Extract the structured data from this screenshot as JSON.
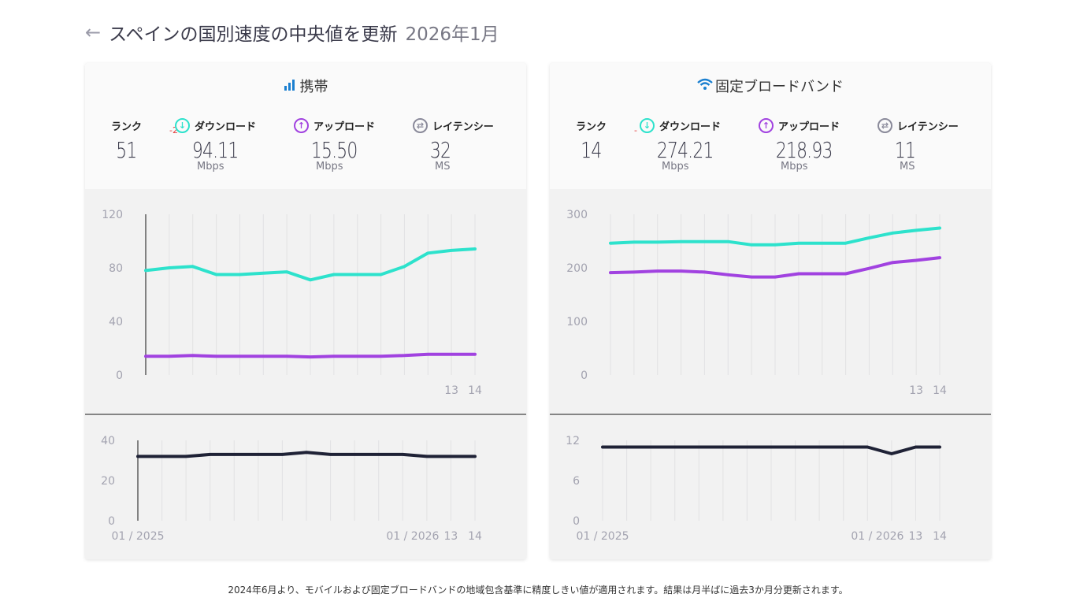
{
  "header": {
    "back_icon": "arrow-left-icon",
    "title": "スペインの国別速度の中央値を更新",
    "date": "2026年1月"
  },
  "colors": {
    "download": "#2de2cc",
    "upload": "#a142e0",
    "latency": "#1f2236",
    "latency_icon": "#8a8a9a",
    "brand": "#1a7fd0"
  },
  "cards": [
    {
      "title": "携帯",
      "icon": "signal-bars-icon",
      "rank_label": "ランク",
      "rank": "51",
      "rank_change": "-2",
      "download_label": "ダウンロード",
      "download": "94.11",
      "download_unit": "Mbps",
      "upload_label": "アップロード",
      "upload": "15.50",
      "upload_unit": "Mbps",
      "latency_label": "レイテンシー",
      "latency": "32",
      "latency_unit": "MS"
    },
    {
      "title": "固定ブロードバンド",
      "icon": "wifi-icon",
      "rank_label": "ランク",
      "rank": "14",
      "rank_change": "-",
      "download_label": "ダウンロード",
      "download": "274.21",
      "download_unit": "Mbps",
      "upload_label": "アップロード",
      "upload": "218.93",
      "upload_unit": "Mbps",
      "latency_label": "レイテンシー",
      "latency": "11",
      "latency_unit": "MS"
    }
  ],
  "chart_data": [
    {
      "type": "line",
      "name": "mobile-speed",
      "ylim": [
        0,
        120
      ],
      "yticks": [
        0,
        40,
        80,
        120
      ],
      "x_tick_labels": [
        {
          "index": 13,
          "label": "13"
        },
        {
          "index": 14,
          "label": "14"
        }
      ],
      "grid": "vertical",
      "series": [
        {
          "key": "download",
          "values": [
            78,
            80,
            81,
            75,
            75,
            76,
            77,
            71,
            75,
            75,
            75,
            81,
            91,
            93,
            94.11
          ]
        },
        {
          "key": "upload",
          "values": [
            14,
            14,
            14.5,
            14,
            14,
            14,
            14,
            13.5,
            14,
            14,
            14,
            14.5,
            15.5,
            15.5,
            15.5
          ]
        }
      ]
    },
    {
      "type": "line",
      "name": "mobile-latency",
      "ylim": [
        0,
        40
      ],
      "yticks": [
        0,
        20,
        40
      ],
      "x_tick_labels": [
        {
          "index": 0,
          "label": "01 / 2025"
        },
        {
          "index": 12,
          "label": "01 / 2026"
        },
        {
          "index": 13,
          "label": "13"
        },
        {
          "index": 14,
          "label": "14"
        }
      ],
      "grid": "vertical",
      "series": [
        {
          "key": "latency",
          "values": [
            32,
            32,
            32,
            33,
            33,
            33,
            33,
            34,
            33,
            33,
            33,
            33,
            32,
            32,
            32
          ]
        }
      ]
    },
    {
      "type": "line",
      "name": "fixed-speed",
      "ylim": [
        0,
        300
      ],
      "yticks": [
        0,
        100,
        200,
        300
      ],
      "x_tick_labels": [
        {
          "index": 13,
          "label": "13"
        },
        {
          "index": 14,
          "label": "14"
        }
      ],
      "grid": "vertical",
      "series": [
        {
          "key": "download",
          "values": [
            246,
            248,
            248,
            249,
            249,
            249,
            243,
            243,
            246,
            246,
            246,
            256,
            265,
            270,
            274.21
          ]
        },
        {
          "key": "upload",
          "values": [
            191,
            192,
            194,
            194,
            192,
            187,
            183,
            183,
            189,
            189,
            189,
            199,
            210,
            214,
            218.93
          ]
        }
      ]
    },
    {
      "type": "line",
      "name": "fixed-latency",
      "ylim": [
        0,
        12
      ],
      "yticks": [
        0,
        6,
        12
      ],
      "x_tick_labels": [
        {
          "index": 0,
          "label": "01 / 2025"
        },
        {
          "index": 12,
          "label": "01 / 2026"
        },
        {
          "index": 13,
          "label": "13"
        },
        {
          "index": 14,
          "label": "14"
        }
      ],
      "grid": "vertical",
      "series": [
        {
          "key": "latency",
          "values": [
            11,
            11,
            11,
            11,
            11,
            11,
            11,
            11,
            11,
            11,
            11,
            11,
            10,
            11,
            11
          ]
        }
      ]
    }
  ],
  "footer": "2024年6月より、モバイルおよび固定ブロードバンドの地域包含基準に精度しきい値が適用されます。結果は月半ばに過去3か月分更新されます。"
}
